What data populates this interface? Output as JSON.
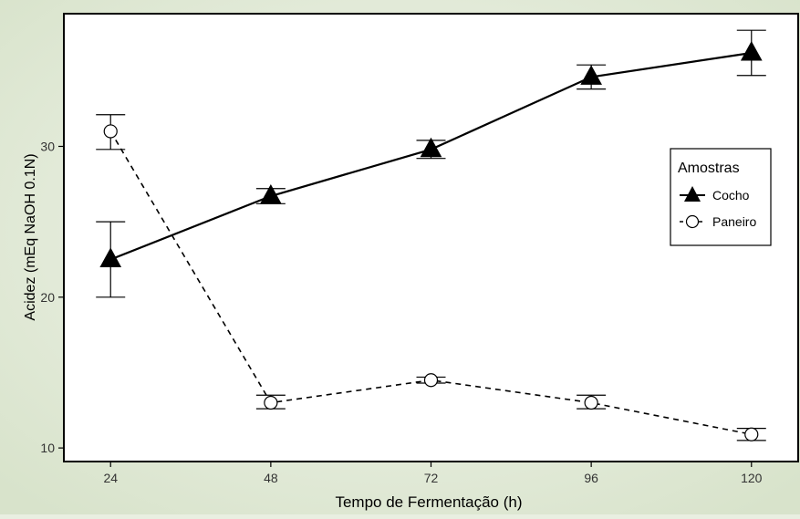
{
  "chart_data": {
    "type": "line",
    "xlabel": "Tempo de Fermentação (h)",
    "ylabel": "Acidez (mEq NaOH 0.1N)",
    "x": [
      24,
      48,
      72,
      96,
      120
    ],
    "xlim": [
      17,
      127
    ],
    "ylim": [
      9.1,
      38.8
    ],
    "x_ticks": [
      24,
      48,
      72,
      96,
      120
    ],
    "y_ticks": [
      10,
      20,
      30
    ],
    "grid": false,
    "legend": {
      "title": "Amostras",
      "placement": "right"
    },
    "series": [
      {
        "name": "Cocho",
        "marker": "filled-triangle",
        "line": "solid",
        "color": "#000000",
        "values": [
          22.5,
          26.7,
          29.8,
          34.6,
          36.2
        ],
        "error_low": [
          20.0,
          26.2,
          29.2,
          33.8,
          34.7
        ],
        "error_high": [
          25.0,
          27.2,
          30.4,
          35.4,
          37.7
        ]
      },
      {
        "name": "Paneiro",
        "marker": "open-circle",
        "line": "dashed",
        "color": "#000000",
        "values": [
          31.0,
          13.0,
          14.5,
          13.0,
          10.9
        ],
        "error_low": [
          29.8,
          12.6,
          14.3,
          12.6,
          10.5
        ],
        "error_high": [
          32.1,
          13.5,
          14.7,
          13.5,
          11.3
        ]
      }
    ]
  }
}
